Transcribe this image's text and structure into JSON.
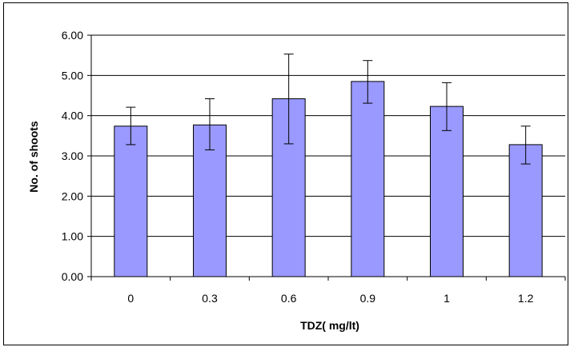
{
  "chart_data": {
    "type": "bar",
    "title": "",
    "xlabel": "TDZ( mg/lt)",
    "ylabel": "No. of shoots",
    "categories": [
      "0",
      "0.3",
      "0.6",
      "0.9",
      "1",
      "1.2"
    ],
    "values": [
      3.74,
      3.77,
      4.42,
      4.85,
      4.23,
      3.28
    ],
    "error_low": [
      3.28,
      3.15,
      3.3,
      4.31,
      3.63,
      2.8
    ],
    "error_high": [
      4.21,
      4.42,
      5.53,
      5.37,
      4.82,
      3.74
    ],
    "ylim": [
      0,
      6
    ],
    "yticks": [
      "0.00",
      "1.00",
      "2.00",
      "3.00",
      "4.00",
      "5.00",
      "6.00"
    ],
    "grid": true,
    "legend": "none",
    "bar_color": "#9999ff",
    "bar_edge_color": "#000000"
  }
}
